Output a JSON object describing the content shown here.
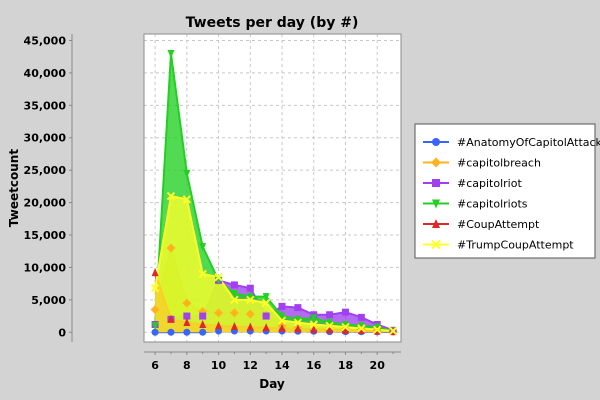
{
  "chart_data": {
    "type": "area",
    "title": "Tweets per day (by #)",
    "xlabel": "Day",
    "ylabel": "Tweetcount",
    "xlim": [
      5.3,
      21.5
    ],
    "ylim": [
      -1500,
      46000
    ],
    "x_ticks": [
      6,
      8,
      10,
      12,
      14,
      16,
      18,
      20
    ],
    "y_ticks": [
      0,
      5000,
      10000,
      15000,
      20000,
      25000,
      30000,
      35000,
      40000,
      45000
    ],
    "y_tick_labels": [
      "0",
      "5,000",
      "10,000",
      "15,000",
      "20,000",
      "25,000",
      "30,000",
      "35,000",
      "40,000",
      "45,000"
    ],
    "x": [
      6,
      7,
      8,
      9,
      10,
      11,
      12,
      13,
      14,
      15,
      16,
      17,
      18,
      19,
      20,
      21
    ],
    "grid": true,
    "legend_position": "right",
    "series": [
      {
        "name": "#AnatomyOfCapitolAttack",
        "color": "#3a64ff",
        "marker": "circle",
        "values": [
          0,
          0,
          0,
          0,
          200,
          200,
          200,
          200,
          200,
          150,
          150,
          100,
          100,
          80,
          60,
          50
        ]
      },
      {
        "name": "#capitolbreach",
        "color": "#ffb31f",
        "marker": "diamond",
        "values": [
          3500,
          13000,
          4500,
          3200,
          3000,
          3000,
          2800,
          2600,
          1000,
          800,
          700,
          600,
          500,
          400,
          300,
          200
        ]
      },
      {
        "name": "#capitolriot",
        "color": "#a040f0",
        "marker": "square",
        "values": [
          1200,
          2000,
          2500,
          2500,
          8000,
          7300,
          6800,
          2500,
          4000,
          3800,
          2700,
          2700,
          3100,
          2300,
          1200,
          300
        ]
      },
      {
        "name": "#capitolriots",
        "color": "#22d022",
        "marker": "triangle-down",
        "values": [
          1000,
          43000,
          24500,
          13200,
          8000,
          6000,
          5500,
          5500,
          2500,
          2000,
          2200,
          1500,
          1200,
          1000,
          800,
          200
        ]
      },
      {
        "name": "#CoupAttempt",
        "color": "#e02828",
        "marker": "triangle-up",
        "values": [
          9200,
          2000,
          1500,
          1200,
          1000,
          900,
          800,
          700,
          600,
          500,
          400,
          400,
          300,
          300,
          200,
          100
        ]
      },
      {
        "name": "#TrumpCoupAttempt",
        "color": "#ffff2a",
        "marker": "x",
        "values": [
          6800,
          21000,
          20500,
          9000,
          8500,
          5000,
          5000,
          4500,
          1800,
          1500,
          1200,
          1000,
          800,
          600,
          400,
          200
        ]
      }
    ]
  }
}
